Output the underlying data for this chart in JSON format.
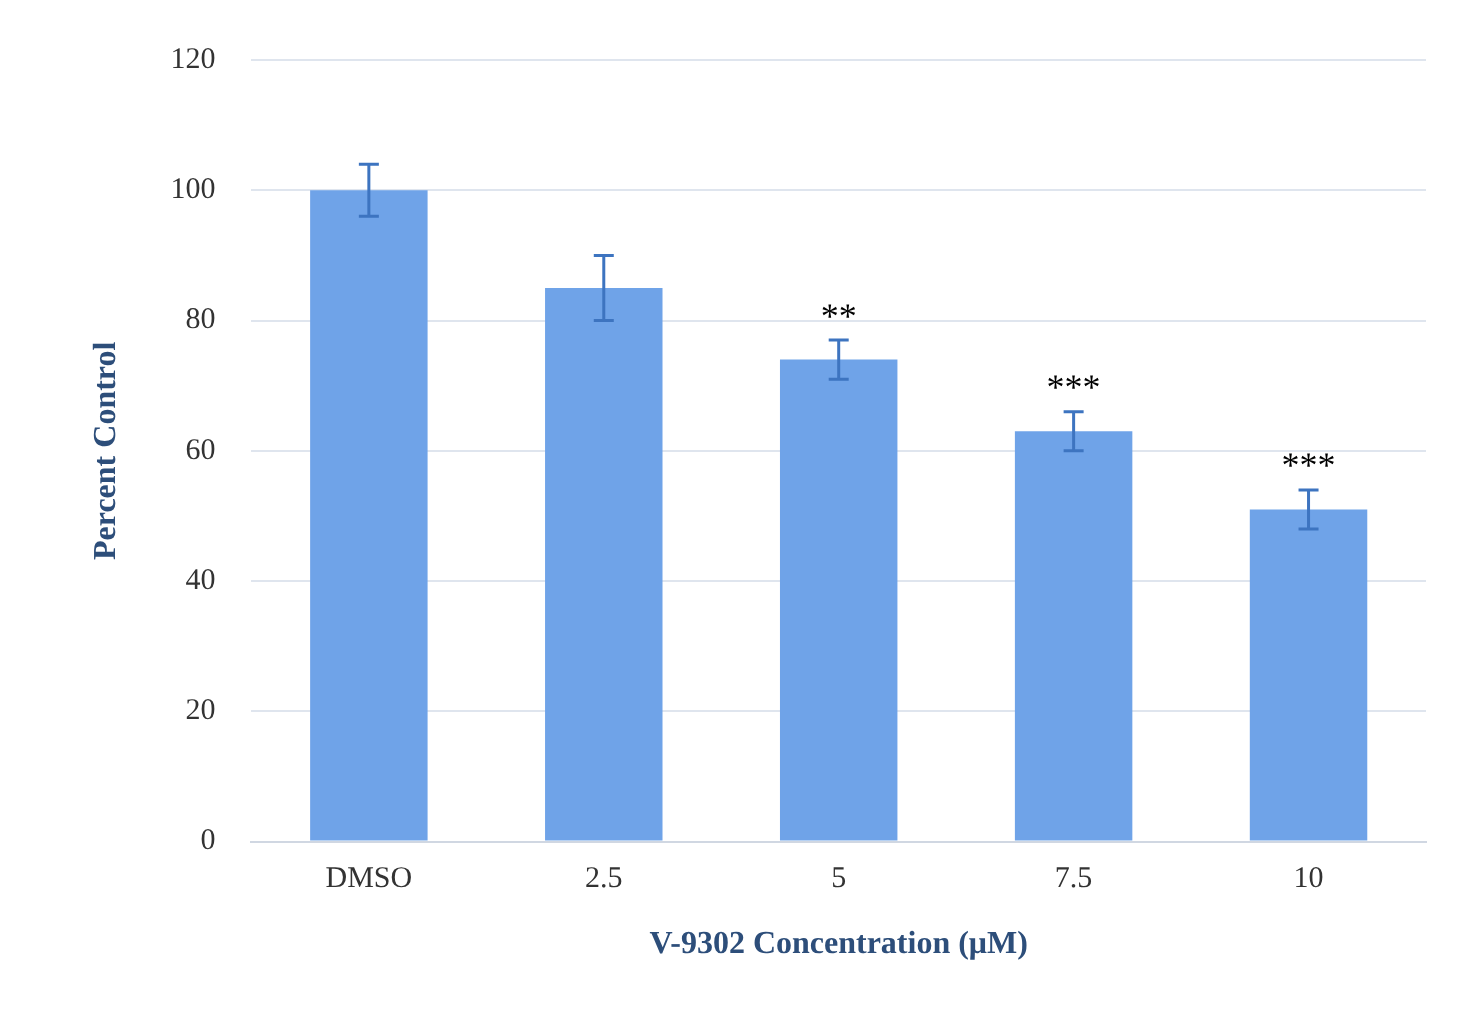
{
  "chart_data": {
    "type": "bar",
    "xlabel": "V-9302 Concentration (μM)",
    "ylabel": "Percent Control",
    "categories": [
      "DMSO",
      "2.5",
      "5",
      "7.5",
      "10"
    ],
    "values": [
      100,
      85,
      74,
      63,
      51
    ],
    "errors": [
      4,
      5,
      3,
      3,
      3
    ],
    "color": "#6fa3e8",
    "ylim": [
      0,
      120
    ],
    "yticks": [
      0,
      20,
      40,
      60,
      80,
      100,
      120
    ],
    "grid": "y",
    "legend": false,
    "annotations": [
      {
        "text": "**",
        "x": "5",
        "y": 77
      },
      {
        "text": "***",
        "x": "7.5",
        "y": 66
      },
      {
        "text": "***",
        "x": "10",
        "y": 54
      }
    ]
  }
}
